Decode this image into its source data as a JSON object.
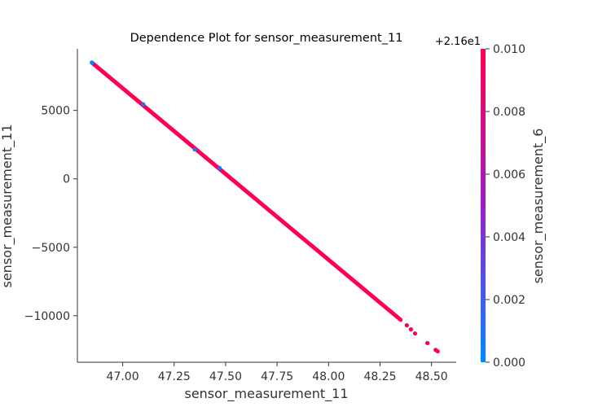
{
  "chart_data": {
    "type": "scatter",
    "title": "Dependence Plot for sensor_measurement_11",
    "xlabel": "sensor_measurement_11",
    "ylabel": "sensor_measurement_11",
    "xlim": [
      46.78,
      48.62
    ],
    "ylim": [
      -13400,
      9500
    ],
    "x_ticks": [
      "47.00",
      "47.25",
      "47.50",
      "47.75",
      "48.00",
      "48.25",
      "48.50"
    ],
    "x_tick_values": [
      47.0,
      47.25,
      47.5,
      47.75,
      48.0,
      48.25,
      48.5
    ],
    "y_ticks": [
      "5000",
      "0",
      "−5000",
      "−10000"
    ],
    "y_tick_values": [
      5000,
      0,
      -5000,
      -10000
    ],
    "trend": {
      "x_start": 46.85,
      "y_start": 8500,
      "x_end": 48.35,
      "y_end": -10300
    },
    "points": [
      {
        "x": 46.85,
        "y": 8500,
        "c": 0.0
      },
      {
        "x": 47.1,
        "y": 5450,
        "c": 0.001
      },
      {
        "x": 47.35,
        "y": 2150,
        "c": 0.001
      },
      {
        "x": 47.47,
        "y": 800,
        "c": 0.001
      },
      {
        "x": 48.38,
        "y": -10700,
        "c": 0.01
      },
      {
        "x": 48.4,
        "y": -11000,
        "c": 0.01
      },
      {
        "x": 48.42,
        "y": -11300,
        "c": 0.01
      },
      {
        "x": 48.48,
        "y": -12000,
        "c": 0.01
      },
      {
        "x": 48.52,
        "y": -12500,
        "c": 0.01
      },
      {
        "x": 48.53,
        "y": -12600,
        "c": 0.01
      }
    ],
    "colorbar": {
      "label": "sensor_measurement_6",
      "range": [
        0.0,
        0.01
      ],
      "ticks": [
        "0.000",
        "0.002",
        "0.004",
        "0.006",
        "0.008",
        "0.010"
      ],
      "tick_values": [
        0.0,
        0.002,
        0.004,
        0.006,
        0.008,
        0.01
      ],
      "offset_label": "+2.16e1",
      "color_low": "#008bfb",
      "color_mid": "#9b1fc8",
      "color_high": "#ff0052"
    },
    "grid": false,
    "legend": "none"
  }
}
